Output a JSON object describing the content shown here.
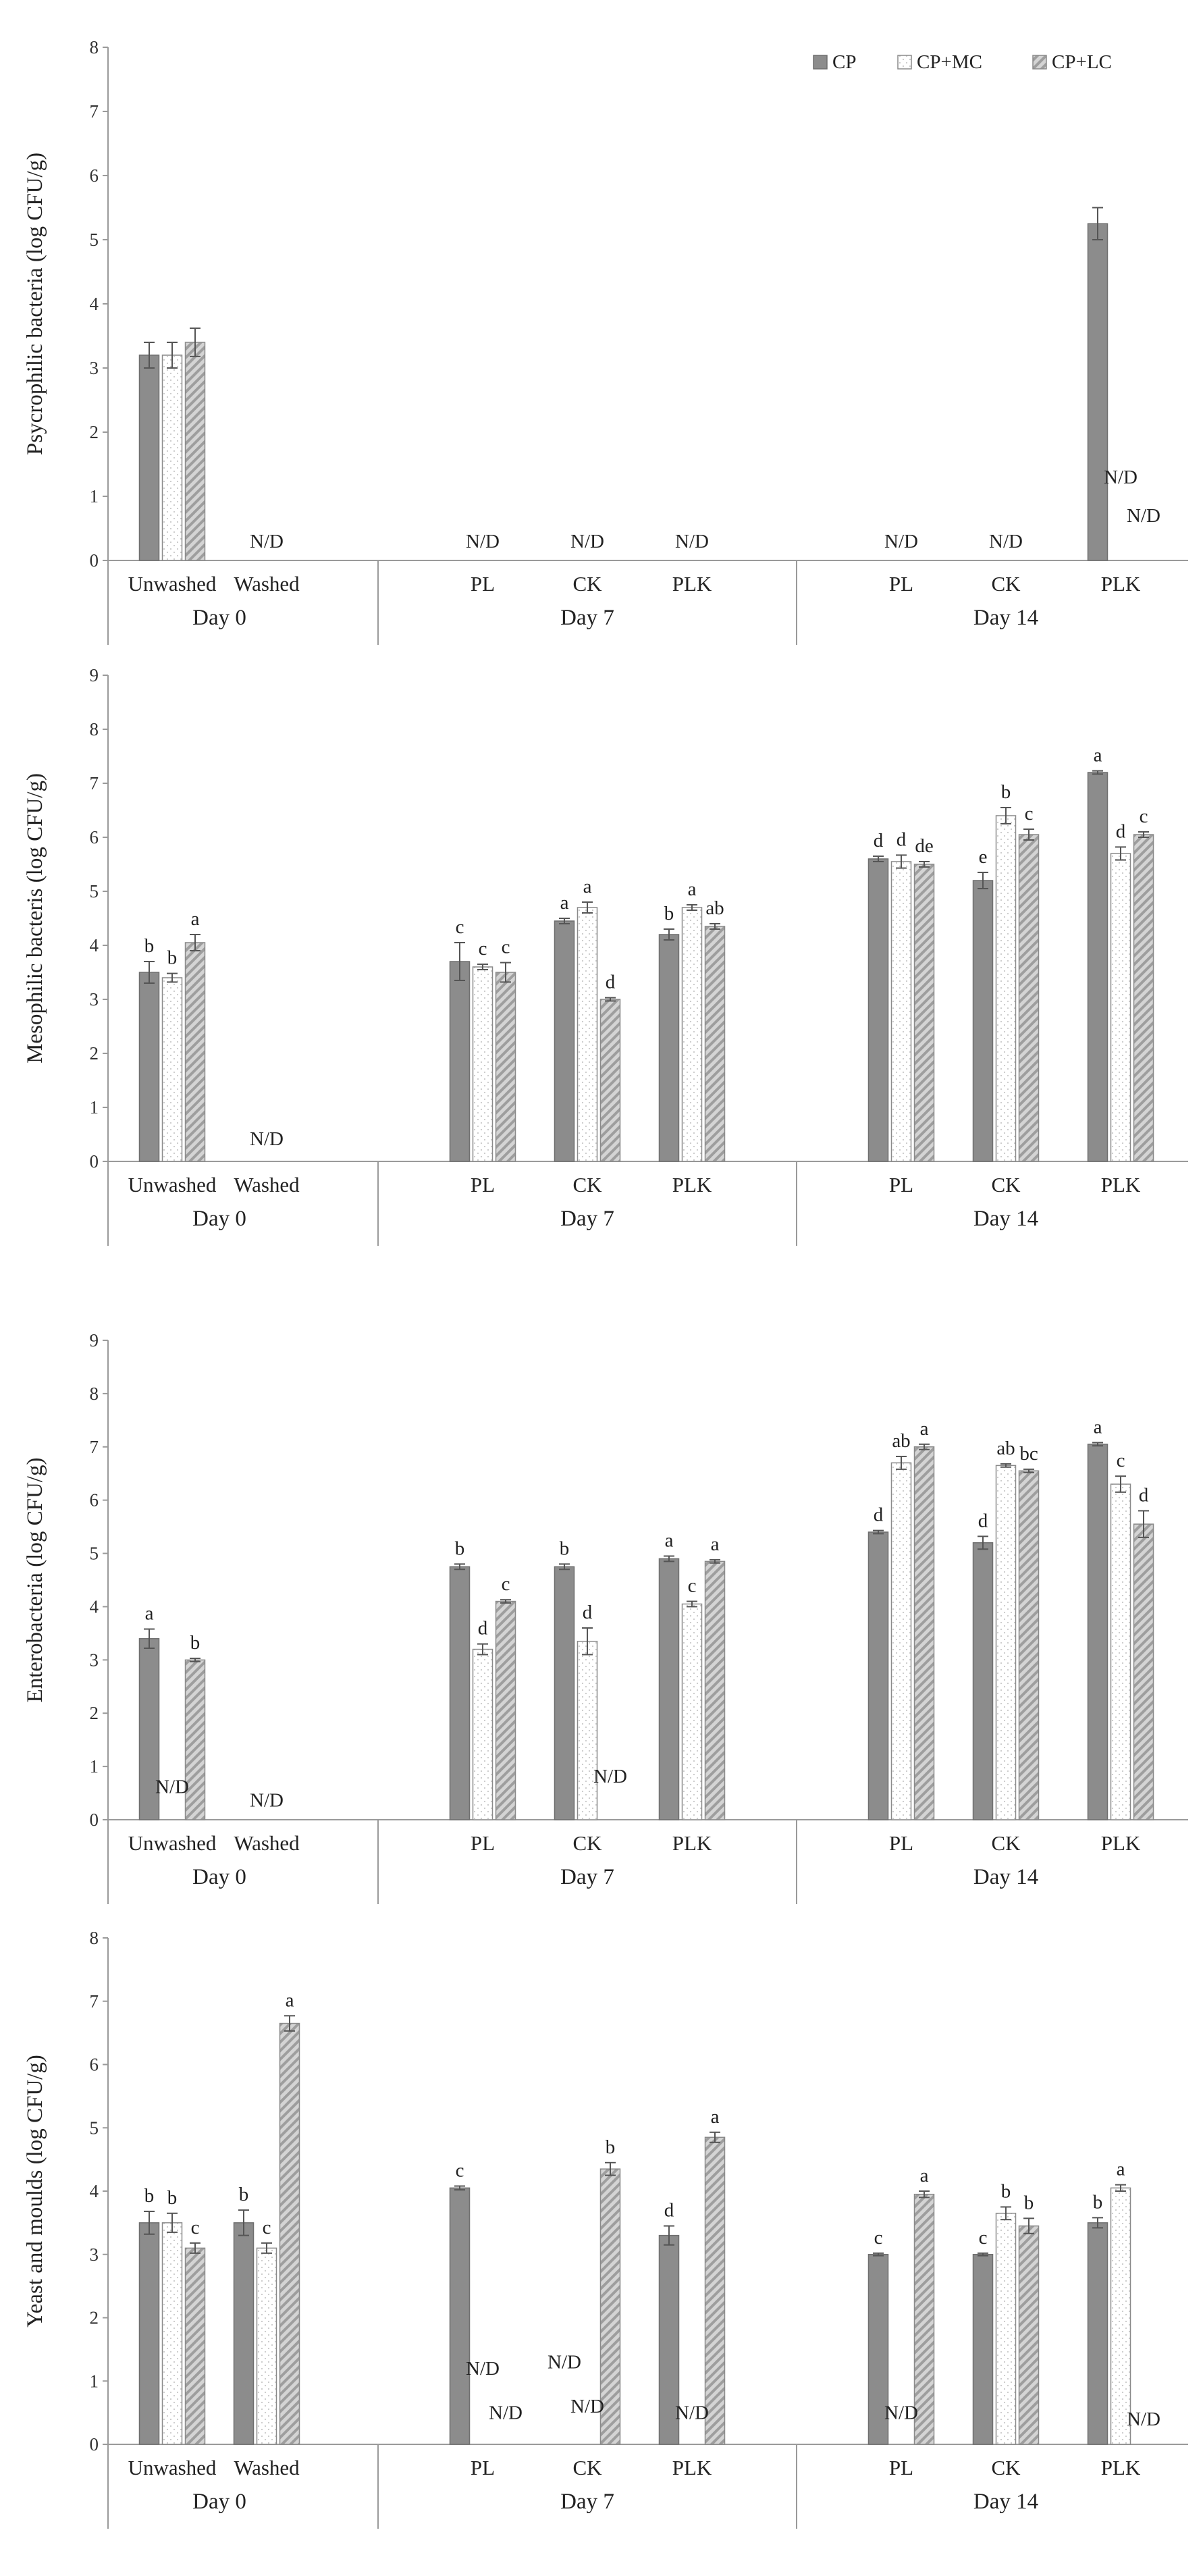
{
  "colors": {
    "CP": "#8c8c8c",
    "CP+MC": "#ffffff",
    "CP+LC": "#c9c9c9",
    "axis": "#9a9a9a"
  },
  "legend": [
    "CP",
    "CP+MC",
    "CP+LC"
  ],
  "chart_data": [
    {
      "type": "bar",
      "ylabel": "Psycrophilic bacteria (log CFU/g)",
      "ylim": [
        0,
        8
      ],
      "yticks": [
        0,
        1,
        2,
        3,
        4,
        5,
        6,
        7,
        8
      ],
      "categories": [
        "Unwashed",
        "Washed",
        "PL",
        "CK",
        "PLK",
        "PL",
        "CK",
        "PLK"
      ],
      "days": [
        {
          "label": "Day 0",
          "categories": [
            "Unwashed",
            "Washed"
          ]
        },
        {
          "label": "Day 7",
          "categories": [
            "PL",
            "CK",
            "PLK"
          ]
        },
        {
          "label": "Day 14",
          "categories": [
            "PL",
            "CK",
            "PLK"
          ]
        }
      ],
      "series": [
        {
          "name": "CP",
          "values": [
            3.2,
            null,
            null,
            null,
            null,
            null,
            null,
            5.25
          ],
          "errors": [
            0.2,
            null,
            null,
            null,
            null,
            null,
            null,
            0.25
          ]
        },
        {
          "name": "CP+MC",
          "values": [
            3.2,
            null,
            null,
            null,
            null,
            null,
            null,
            null
          ],
          "errors": [
            0.2,
            null,
            null,
            null,
            null,
            null,
            null,
            null
          ]
        },
        {
          "name": "CP+LC",
          "values": [
            3.4,
            null,
            null,
            null,
            null,
            null,
            null,
            null
          ],
          "errors": [
            0.22,
            null,
            null,
            null,
            null,
            null,
            null,
            null
          ]
        }
      ],
      "letters": [],
      "nd_labels": [
        {
          "category": 1,
          "series": 1,
          "text": "N/D",
          "value": 0.2
        },
        {
          "category": 2,
          "series": 1,
          "text": "N/D",
          "value": 0.2
        },
        {
          "category": 3,
          "series": 1,
          "text": "N/D",
          "value": 0.2
        },
        {
          "category": 4,
          "series": 1,
          "text": "N/D",
          "value": 0.2
        },
        {
          "category": 5,
          "series": 1,
          "text": "N/D",
          "value": 0.2
        },
        {
          "category": 6,
          "series": 1,
          "text": "N/D",
          "value": 0.2
        },
        {
          "category": 7,
          "series": 1,
          "text": "N/D",
          "value": 1.2
        },
        {
          "category": 7,
          "series": 2,
          "text": "N/D",
          "value": 0.6
        }
      ]
    },
    {
      "type": "bar",
      "ylabel": "Mesophilic bacteris (log CFU/g)",
      "ylim": [
        0,
        9
      ],
      "yticks": [
        0,
        1,
        2,
        3,
        4,
        5,
        6,
        7,
        8,
        9
      ],
      "categories": [
        "Unwashed",
        "Washed",
        "PL",
        "CK",
        "PLK",
        "PL",
        "CK",
        "PLK"
      ],
      "days": [
        {
          "label": "Day 0",
          "categories": [
            "Unwashed",
            "Washed"
          ]
        },
        {
          "label": "Day 7",
          "categories": [
            "PL",
            "CK",
            "PLK"
          ]
        },
        {
          "label": "Day 14",
          "categories": [
            "PL",
            "CK",
            "PLK"
          ]
        }
      ],
      "series": [
        {
          "name": "CP",
          "values": [
            3.5,
            null,
            3.7,
            4.45,
            4.2,
            5.6,
            5.2,
            7.2
          ],
          "errors": [
            0.2,
            null,
            0.35,
            0.05,
            0.1,
            0.05,
            0.15,
            0.03
          ]
        },
        {
          "name": "CP+MC",
          "values": [
            3.4,
            null,
            3.6,
            4.7,
            4.7,
            5.55,
            6.4,
            5.7
          ],
          "errors": [
            0.08,
            null,
            0.05,
            0.1,
            0.05,
            0.12,
            0.15,
            0.12
          ]
        },
        {
          "name": "CP+LC",
          "values": [
            4.05,
            null,
            3.5,
            3.0,
            4.35,
            5.5,
            6.05,
            6.05
          ],
          "errors": [
            0.15,
            null,
            0.18,
            0.03,
            0.05,
            0.05,
            0.1,
            0.05
          ]
        }
      ],
      "letters": [
        {
          "category": 0,
          "series": 0,
          "text": "b"
        },
        {
          "category": 0,
          "series": 1,
          "text": "b"
        },
        {
          "category": 0,
          "series": 2,
          "text": "a"
        },
        {
          "category": 2,
          "series": 0,
          "text": "c"
        },
        {
          "category": 2,
          "series": 1,
          "text": "c"
        },
        {
          "category": 2,
          "series": 2,
          "text": "c"
        },
        {
          "category": 3,
          "series": 0,
          "text": "a"
        },
        {
          "category": 3,
          "series": 1,
          "text": "a"
        },
        {
          "category": 3,
          "series": 2,
          "text": "d"
        },
        {
          "category": 4,
          "series": 0,
          "text": "b"
        },
        {
          "category": 4,
          "series": 1,
          "text": "a"
        },
        {
          "category": 4,
          "series": 2,
          "text": "ab"
        },
        {
          "category": 5,
          "series": 0,
          "text": "d"
        },
        {
          "category": 5,
          "series": 1,
          "text": "d"
        },
        {
          "category": 5,
          "series": 2,
          "text": "de"
        },
        {
          "category": 6,
          "series": 0,
          "text": "e"
        },
        {
          "category": 6,
          "series": 1,
          "text": "b"
        },
        {
          "category": 6,
          "series": 2,
          "text": "c"
        },
        {
          "category": 7,
          "series": 0,
          "text": "a"
        },
        {
          "category": 7,
          "series": 1,
          "text": "d"
        },
        {
          "category": 7,
          "series": 2,
          "text": "c"
        }
      ],
      "nd_labels": [
        {
          "category": 1,
          "series": 1,
          "text": "N/D",
          "value": 0.3
        }
      ]
    },
    {
      "type": "bar",
      "ylabel": "Enterobacteria (log CFU/g)",
      "ylim": [
        0,
        9
      ],
      "yticks": [
        0,
        1,
        2,
        3,
        4,
        5,
        6,
        7,
        8,
        9
      ],
      "categories": [
        "Unwashed",
        "Washed",
        "PL",
        "CK",
        "PLK",
        "PL",
        "CK",
        "PLK"
      ],
      "days": [
        {
          "label": "Day 0",
          "categories": [
            "Unwashed",
            "Washed"
          ]
        },
        {
          "label": "Day 7",
          "categories": [
            "PL",
            "CK",
            "PLK"
          ]
        },
        {
          "label": "Day 14",
          "categories": [
            "PL",
            "CK",
            "PLK"
          ]
        }
      ],
      "series": [
        {
          "name": "CP",
          "values": [
            3.4,
            null,
            4.75,
            4.75,
            4.9,
            5.4,
            5.2,
            7.05
          ],
          "errors": [
            0.18,
            null,
            0.05,
            0.05,
            0.05,
            0.03,
            0.12,
            0.03
          ]
        },
        {
          "name": "CP+MC",
          "values": [
            null,
            null,
            3.2,
            3.35,
            4.05,
            6.7,
            6.65,
            6.3
          ],
          "errors": [
            null,
            null,
            0.1,
            0.25,
            0.05,
            0.12,
            0.03,
            0.15
          ]
        },
        {
          "name": "CP+LC",
          "values": [
            3.0,
            null,
            4.1,
            null,
            4.85,
            7.0,
            6.55,
            5.55
          ],
          "errors": [
            0.03,
            null,
            0.03,
            null,
            0.03,
            0.05,
            0.03,
            0.25
          ]
        }
      ],
      "letters": [
        {
          "category": 0,
          "series": 0,
          "text": "a"
        },
        {
          "category": 0,
          "series": 2,
          "text": "b"
        },
        {
          "category": 2,
          "series": 0,
          "text": "b"
        },
        {
          "category": 2,
          "series": 1,
          "text": "d"
        },
        {
          "category": 2,
          "series": 2,
          "text": "c"
        },
        {
          "category": 3,
          "series": 0,
          "text": "b"
        },
        {
          "category": 3,
          "series": 1,
          "text": "d"
        },
        {
          "category": 4,
          "series": 0,
          "text": "a"
        },
        {
          "category": 4,
          "series": 1,
          "text": "c"
        },
        {
          "category": 4,
          "series": 2,
          "text": "a"
        },
        {
          "category": 5,
          "series": 0,
          "text": "d"
        },
        {
          "category": 5,
          "series": 1,
          "text": "ab"
        },
        {
          "category": 5,
          "series": 2,
          "text": "a"
        },
        {
          "category": 6,
          "series": 0,
          "text": "d"
        },
        {
          "category": 6,
          "series": 1,
          "text": "ab"
        },
        {
          "category": 6,
          "series": 2,
          "text": "bc"
        },
        {
          "category": 7,
          "series": 0,
          "text": "a"
        },
        {
          "category": 7,
          "series": 1,
          "text": "c"
        },
        {
          "category": 7,
          "series": 2,
          "text": "d"
        }
      ],
      "nd_labels": [
        {
          "category": 0,
          "series": 1,
          "text": "N/D",
          "value": 0.5
        },
        {
          "category": 1,
          "series": 1,
          "text": "N/D",
          "value": 0.25
        },
        {
          "category": 3,
          "series": 2,
          "text": "N/D",
          "value": 0.7
        }
      ]
    },
    {
      "type": "bar",
      "ylabel": "Yeast and moulds (log CFU/g)",
      "ylim": [
        0,
        8
      ],
      "yticks": [
        0,
        1,
        2,
        3,
        4,
        5,
        6,
        7,
        8
      ],
      "categories": [
        "Unwashed",
        "Washed",
        "PL",
        "CK",
        "PLK",
        "PL",
        "CK",
        "PLK"
      ],
      "days": [
        {
          "label": "Day 0",
          "categories": [
            "Unwashed",
            "Washed"
          ]
        },
        {
          "label": "Day 7",
          "categories": [
            "PL",
            "CK",
            "PLK"
          ]
        },
        {
          "label": "Day 14",
          "categories": [
            "PL",
            "CK",
            "PLK"
          ]
        }
      ],
      "series": [
        {
          "name": "CP",
          "values": [
            3.5,
            3.5,
            4.05,
            null,
            3.3,
            3.0,
            3.0,
            3.5
          ],
          "errors": [
            0.18,
            0.2,
            0.03,
            null,
            0.15,
            0.02,
            0.02,
            0.08
          ]
        },
        {
          "name": "CP+MC",
          "values": [
            3.5,
            3.1,
            null,
            null,
            null,
            null,
            3.65,
            4.05
          ],
          "errors": [
            0.15,
            0.08,
            null,
            null,
            null,
            null,
            0.1,
            0.05
          ]
        },
        {
          "name": "CP+LC",
          "values": [
            3.1,
            6.65,
            null,
            4.35,
            4.85,
            3.95,
            3.45,
            null
          ],
          "errors": [
            0.08,
            0.12,
            null,
            0.1,
            0.08,
            0.05,
            0.12,
            null
          ]
        }
      ],
      "letters": [
        {
          "category": 0,
          "series": 0,
          "text": "b"
        },
        {
          "category": 0,
          "series": 1,
          "text": "b"
        },
        {
          "category": 0,
          "series": 2,
          "text": "c"
        },
        {
          "category": 1,
          "series": 0,
          "text": "b"
        },
        {
          "category": 1,
          "series": 1,
          "text": "c"
        },
        {
          "category": 1,
          "series": 2,
          "text": "a"
        },
        {
          "category": 2,
          "series": 0,
          "text": "c"
        },
        {
          "category": 3,
          "series": 2,
          "text": "b"
        },
        {
          "category": 4,
          "series": 0,
          "text": "d"
        },
        {
          "category": 4,
          "series": 2,
          "text": "a"
        },
        {
          "category": 5,
          "series": 0,
          "text": "c"
        },
        {
          "category": 5,
          "series": 2,
          "text": "a"
        },
        {
          "category": 6,
          "series": 0,
          "text": "c"
        },
        {
          "category": 6,
          "series": 1,
          "text": "b"
        },
        {
          "category": 6,
          "series": 2,
          "text": "b"
        },
        {
          "category": 7,
          "series": 0,
          "text": "b"
        },
        {
          "category": 7,
          "series": 1,
          "text": "a"
        }
      ],
      "nd_labels": [
        {
          "category": 2,
          "series": 1,
          "text": "N/D",
          "value": 1.1
        },
        {
          "category": 2,
          "series": 2,
          "text": "N/D",
          "value": 0.4
        },
        {
          "category": 3,
          "series": 0,
          "text": "N/D",
          "value": 1.2
        },
        {
          "category": 3,
          "series": 1,
          "text": "N/D",
          "value": 0.5
        },
        {
          "category": 4,
          "series": 1,
          "text": "N/D",
          "value": 0.4
        },
        {
          "category": 5,
          "series": 1,
          "text": "N/D",
          "value": 0.4
        },
        {
          "category": 7,
          "series": 2,
          "text": "N/D",
          "value": 0.3
        }
      ]
    }
  ]
}
